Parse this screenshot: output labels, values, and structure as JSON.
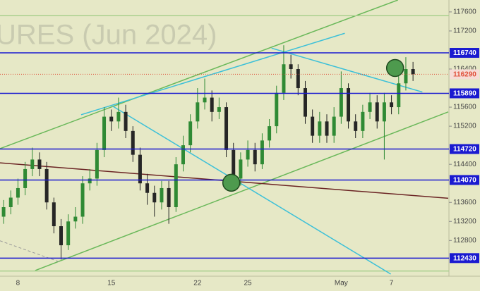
{
  "chart_data": {
    "type": "candlestick",
    "watermark": "URES (Jun 2024)",
    "categories": [
      null,
      null,
      "8",
      null,
      null,
      null,
      null,
      null,
      null,
      null,
      null,
      null,
      null,
      null,
      null,
      "15",
      null,
      null,
      null,
      null,
      null,
      null,
      null,
      null,
      null,
      null,
      null,
      "22",
      null,
      null,
      null,
      null,
      null,
      null,
      "25",
      null,
      null,
      null,
      null,
      null,
      null,
      null,
      null,
      null,
      null,
      null,
      null,
      "May",
      null,
      null,
      null,
      null,
      null,
      null,
      "7",
      null,
      null,
      null
    ],
    "open": [
      113300,
      113500,
      113700,
      113900,
      114300,
      114500,
      114300,
      113600,
      113100,
      112700,
      113200,
      113300,
      114000,
      114100,
      114700,
      115400,
      115300,
      115500,
      115100,
      114600,
      114000,
      113800,
      113600,
      113900,
      113500,
      114400,
      114800,
      115300,
      115700,
      115800,
      115500,
      115600,
      114700,
      114100,
      114500,
      114700,
      114400,
      114900,
      115200,
      115900,
      116500,
      116400,
      116000,
      115400,
      115000,
      115300,
      115000,
      115400,
      116000,
      115300,
      115100,
      115500,
      115700,
      115300,
      115700,
      115600,
      116100,
      116400
    ],
    "high": [
      113650,
      113850,
      114100,
      114450,
      114750,
      114650,
      114450,
      113700,
      113250,
      113350,
      113500,
      114150,
      114300,
      114850,
      115600,
      115550,
      115800,
      115650,
      115200,
      114750,
      114200,
      113950,
      114050,
      114050,
      114550,
      115000,
      115450,
      116000,
      116200,
      115950,
      115800,
      115700,
      114850,
      114650,
      114900,
      114850,
      115050,
      115350,
      116050,
      116900,
      116700,
      116500,
      116150,
      115550,
      115500,
      115450,
      115600,
      116350,
      116100,
      115450,
      115650,
      115900,
      115850,
      115900,
      115850,
      116250,
      116650,
      116550
    ],
    "low": [
      113150,
      113350,
      113550,
      113750,
      114150,
      114150,
      113450,
      112950,
      112400,
      112600,
      113050,
      113150,
      113850,
      113950,
      114550,
      115100,
      115150,
      114950,
      114450,
      113850,
      113550,
      113300,
      113450,
      113150,
      113400,
      114250,
      114650,
      115150,
      115550,
      115300,
      115350,
      114550,
      113950,
      113950,
      114350,
      114250,
      114300,
      114750,
      115050,
      115750,
      116200,
      115850,
      115250,
      114850,
      114850,
      114850,
      114850,
      115250,
      115150,
      114950,
      114950,
      115350,
      115150,
      114500,
      115450,
      115450,
      115950,
      116150
    ],
    "close": [
      113500,
      113700,
      113900,
      114300,
      114500,
      114300,
      113600,
      113100,
      112700,
      113200,
      113300,
      114000,
      114100,
      114700,
      115400,
      115300,
      115500,
      115100,
      114600,
      114000,
      113800,
      113600,
      113900,
      113500,
      114400,
      114800,
      115300,
      115700,
      115800,
      115500,
      115600,
      114700,
      114100,
      114500,
      114700,
      114400,
      114900,
      115200,
      115900,
      116500,
      116400,
      116000,
      115400,
      115000,
      115300,
      115000,
      115400,
      116000,
      115300,
      115100,
      115500,
      115700,
      115300,
      115700,
      115600,
      116100,
      116400,
      116290
    ],
    "up_color": "#2f8a34",
    "down_color": "#262626",
    "xlim": [
      -0.5,
      62
    ],
    "ylim": [
      112050,
      117850
    ],
    "yticks": [
      117600,
      117200,
      116400,
      115600,
      115200,
      114400,
      113600,
      113200,
      112800
    ],
    "levels": [
      {
        "value": 116740,
        "color": "#1a1ad0"
      },
      {
        "value": 115890,
        "color": "#1a1ad0"
      },
      {
        "value": 114720,
        "color": "#1a1ad0"
      },
      {
        "value": 114070,
        "color": "#1a1ad0"
      },
      {
        "value": 112430,
        "color": "#1a1ad0"
      }
    ],
    "last_price": {
      "value": 116290,
      "color": "#e0503a"
    },
    "trendlines": [
      {
        "color": "#6ab85a",
        "points": [
          [
            -0.5,
            114730
          ],
          [
            54.9,
            117850
          ]
        ]
      },
      {
        "color": "#6ab85a",
        "points": [
          [
            4.4,
            112170
          ],
          [
            61.9,
            115500
          ]
        ]
      },
      {
        "color": "#a9d08e",
        "points": [
          [
            -0.5,
            117520
          ],
          [
            62,
            117520
          ]
        ]
      },
      {
        "color": "#a9d08e",
        "points": [
          [
            -0.5,
            112160
          ],
          [
            62,
            112160
          ]
        ]
      },
      {
        "color": "#3cc0d8",
        "points": [
          [
            10.8,
            115441
          ],
          [
            47.5,
            117151
          ]
        ]
      },
      {
        "color": "#3cc0d8",
        "points": [
          [
            37.3,
            116839
          ],
          [
            58.3,
            115917
          ]
        ]
      },
      {
        "color": "#3cc0d8",
        "points": [
          [
            15.2,
            115620
          ],
          [
            53.9,
            112095
          ]
        ]
      },
      {
        "color": "#6b2424",
        "points": [
          [
            -0.5,
            114430
          ],
          [
            61.9,
            113686
          ]
        ]
      },
      {
        "color": "#999999",
        "points": [
          [
            -0.5,
            112794
          ],
          [
            7.84,
            112348
          ]
        ],
        "dashed": true
      }
    ],
    "markers": [
      {
        "x": 31.7,
        "y": 114013,
        "color": "#4e9a4e"
      },
      {
        "x": 54.5,
        "y": 116422,
        "color": "#4e9a4e"
      }
    ]
  }
}
